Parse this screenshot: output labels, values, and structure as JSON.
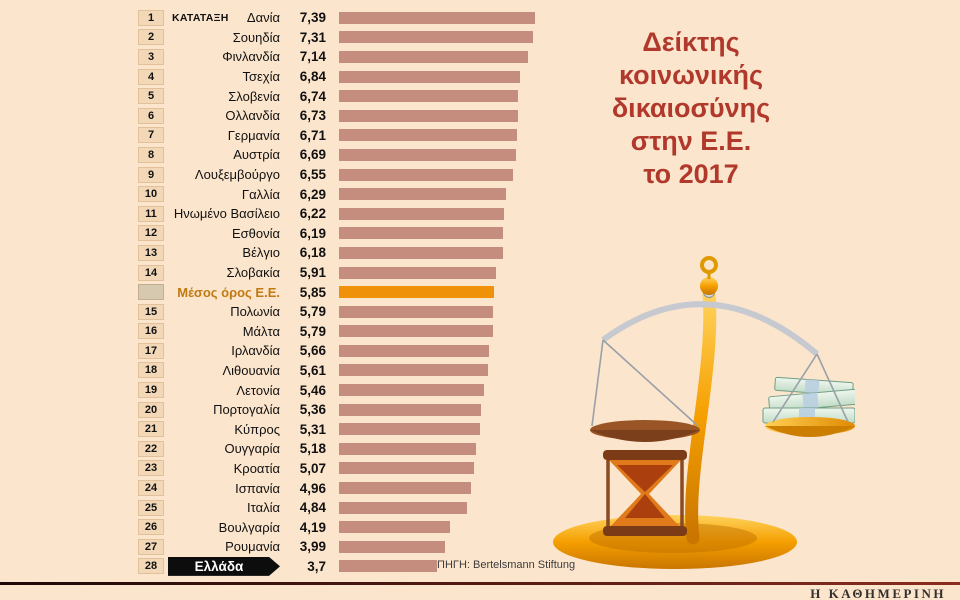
{
  "title": "Δείκτης\nκοινωνικής\nδικαιοσύνης\nστην Ε.Ε.\nτο 2017",
  "rank_header": "ΚΑΤΑΤΑΞΗ",
  "source": "ΠΗΓΗ: Bertelsmann Stiftung",
  "brand": "Η ΚΑΘΗΜΕΡΙΝΗ",
  "icons": {
    "illustration": "balance-scale-with-hourglass-and-money"
  },
  "colors": {
    "background": "#fce5cd",
    "bar": "#c58d7d",
    "highlight": "#ef9209",
    "title": "#b0392c",
    "greece_bg": "#0d0d0d",
    "rank_box_bg": "#f3d8b8",
    "rank_box_border": "#e2c09a"
  },
  "chart_data": {
    "type": "bar",
    "orientation": "horizontal",
    "xlim": [
      0,
      7.39
    ],
    "title": "Δείκτης κοινωνικής δικαιοσύνης στην Ε.Ε. το 2017",
    "legend": "none",
    "grid": false,
    "rows": [
      {
        "rank": "1",
        "label": "Δανία",
        "value": "7,39",
        "v": 7.39,
        "header": true
      },
      {
        "rank": "2",
        "label": "Σουηδία",
        "value": "7,31",
        "v": 7.31
      },
      {
        "rank": "3",
        "label": "Φινλανδία",
        "value": "7,14",
        "v": 7.14
      },
      {
        "rank": "4",
        "label": "Τσεχία",
        "value": "6,84",
        "v": 6.84
      },
      {
        "rank": "5",
        "label": "Σλοβενία",
        "value": "6,74",
        "v": 6.74
      },
      {
        "rank": "6",
        "label": "Ολλανδία",
        "value": "6,73",
        "v": 6.73
      },
      {
        "rank": "7",
        "label": "Γερμανία",
        "value": "6,71",
        "v": 6.71
      },
      {
        "rank": "8",
        "label": "Αυστρία",
        "value": "6,69",
        "v": 6.69
      },
      {
        "rank": "9",
        "label": "Λουξεμβούργο",
        "value": "6,55",
        "v": 6.55
      },
      {
        "rank": "10",
        "label": "Γαλλία",
        "value": "6,29",
        "v": 6.29
      },
      {
        "rank": "11",
        "label": "Ηνωμένο Βασίλειο",
        "value": "6,22",
        "v": 6.22
      },
      {
        "rank": "12",
        "label": "Εσθονία",
        "value": "6,19",
        "v": 6.19
      },
      {
        "rank": "13",
        "label": "Βέλγιο",
        "value": "6,18",
        "v": 6.18
      },
      {
        "rank": "14",
        "label": "Σλοβακία",
        "value": "5,91",
        "v": 5.91
      },
      {
        "rank": "",
        "label": "Μέσος όρος Ε.Ε.",
        "value": "5,85",
        "v": 5.85,
        "type": "average"
      },
      {
        "rank": "15",
        "label": "Πολωνία",
        "value": "5,79",
        "v": 5.79
      },
      {
        "rank": "16",
        "label": "Μάλτα",
        "value": "5,79",
        "v": 5.79
      },
      {
        "rank": "17",
        "label": "Ιρλανδία",
        "value": "5,66",
        "v": 5.66
      },
      {
        "rank": "18",
        "label": "Λιθουανία",
        "value": "5,61",
        "v": 5.61
      },
      {
        "rank": "19",
        "label": "Λετονία",
        "value": "5,46",
        "v": 5.46
      },
      {
        "rank": "20",
        "label": "Πορτογαλία",
        "value": "5,36",
        "v": 5.36
      },
      {
        "rank": "21",
        "label": "Κύπρος",
        "value": "5,31",
        "v": 5.31
      },
      {
        "rank": "22",
        "label": "Ουγγαρία",
        "value": "5,18",
        "v": 5.18
      },
      {
        "rank": "23",
        "label": "Κροατία",
        "value": "5,07",
        "v": 5.07
      },
      {
        "rank": "24",
        "label": "Ισπανία",
        "value": "4,96",
        "v": 4.96
      },
      {
        "rank": "25",
        "label": "Ιταλία",
        "value": "4,84",
        "v": 4.84
      },
      {
        "rank": "26",
        "label": "Βουλγαρία",
        "value": "4,19",
        "v": 4.19
      },
      {
        "rank": "27",
        "label": "Ρουμανία",
        "value": "3,99",
        "v": 3.99
      },
      {
        "rank": "28",
        "label": "Ελλάδα",
        "value": "3,7",
        "v": 3.7,
        "type": "greece"
      }
    ]
  }
}
